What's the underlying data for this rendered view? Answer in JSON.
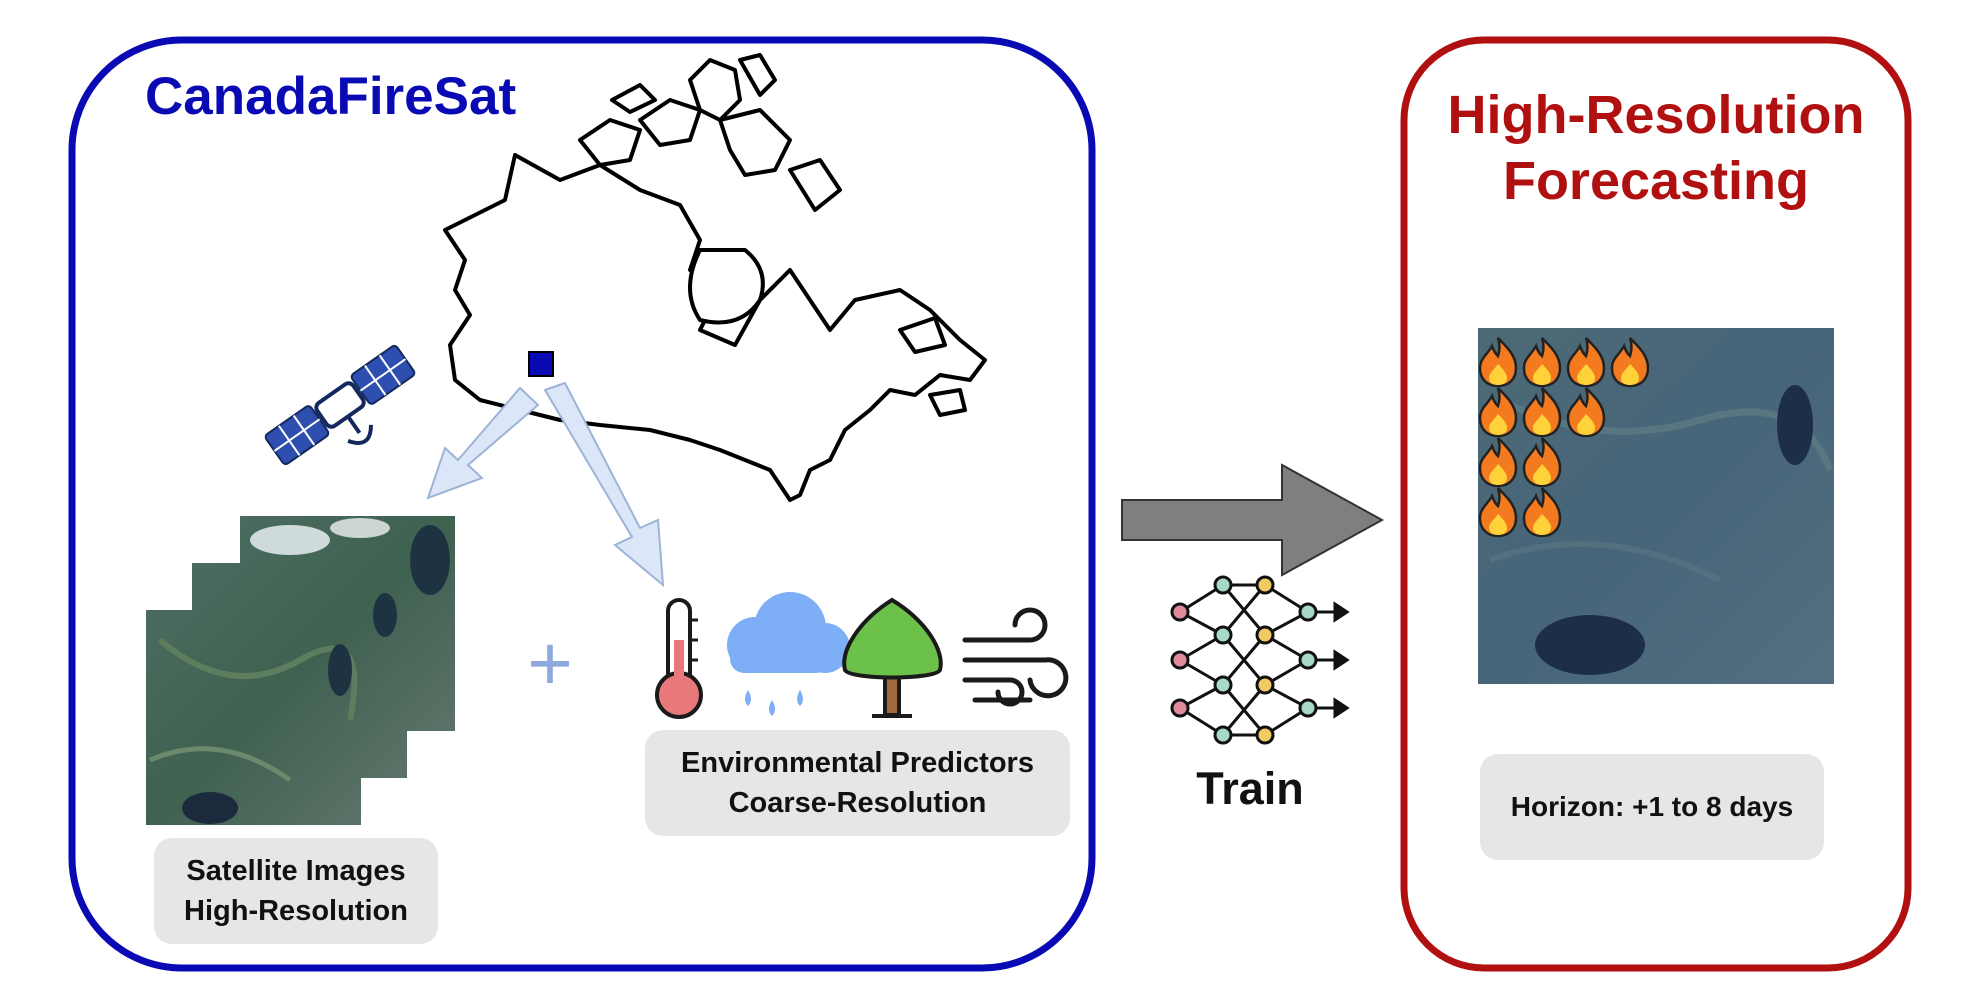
{
  "left_panel": {
    "title": "CanadaFireSat",
    "border_color": "#0a0ab4",
    "satellite_label": {
      "line1": "Satellite Images",
      "line2": "High-Resolution"
    },
    "env_label": {
      "line1": "Environmental Predictors",
      "line2": "Coarse-Resolution"
    },
    "plus_symbol": "+",
    "icons": [
      "satellite-icon",
      "canada-map-icon",
      "thermometer-icon",
      "rain-cloud-icon",
      "tree-icon",
      "wind-icon"
    ]
  },
  "center": {
    "train_label": "Train",
    "icons": [
      "arrow-right-icon",
      "neural-network-icon"
    ]
  },
  "right_panel": {
    "title_line1": "High-Resolution",
    "title_line2": "Forecasting",
    "border_color": "#b01010",
    "horizon_label": "Horizon: +1 to 8 days",
    "fire_rows": [
      4,
      3,
      2,
      2
    ],
    "icons": [
      "fire-icon"
    ]
  },
  "colors": {
    "accent_blue": "#0a0ab4",
    "accent_red": "#b01010",
    "arrow_fill": "#dbe6f8",
    "arrow_stroke": "#9db3d8",
    "train_arrow": "#7f7f7f",
    "label_bg": "#e6e6e6"
  }
}
